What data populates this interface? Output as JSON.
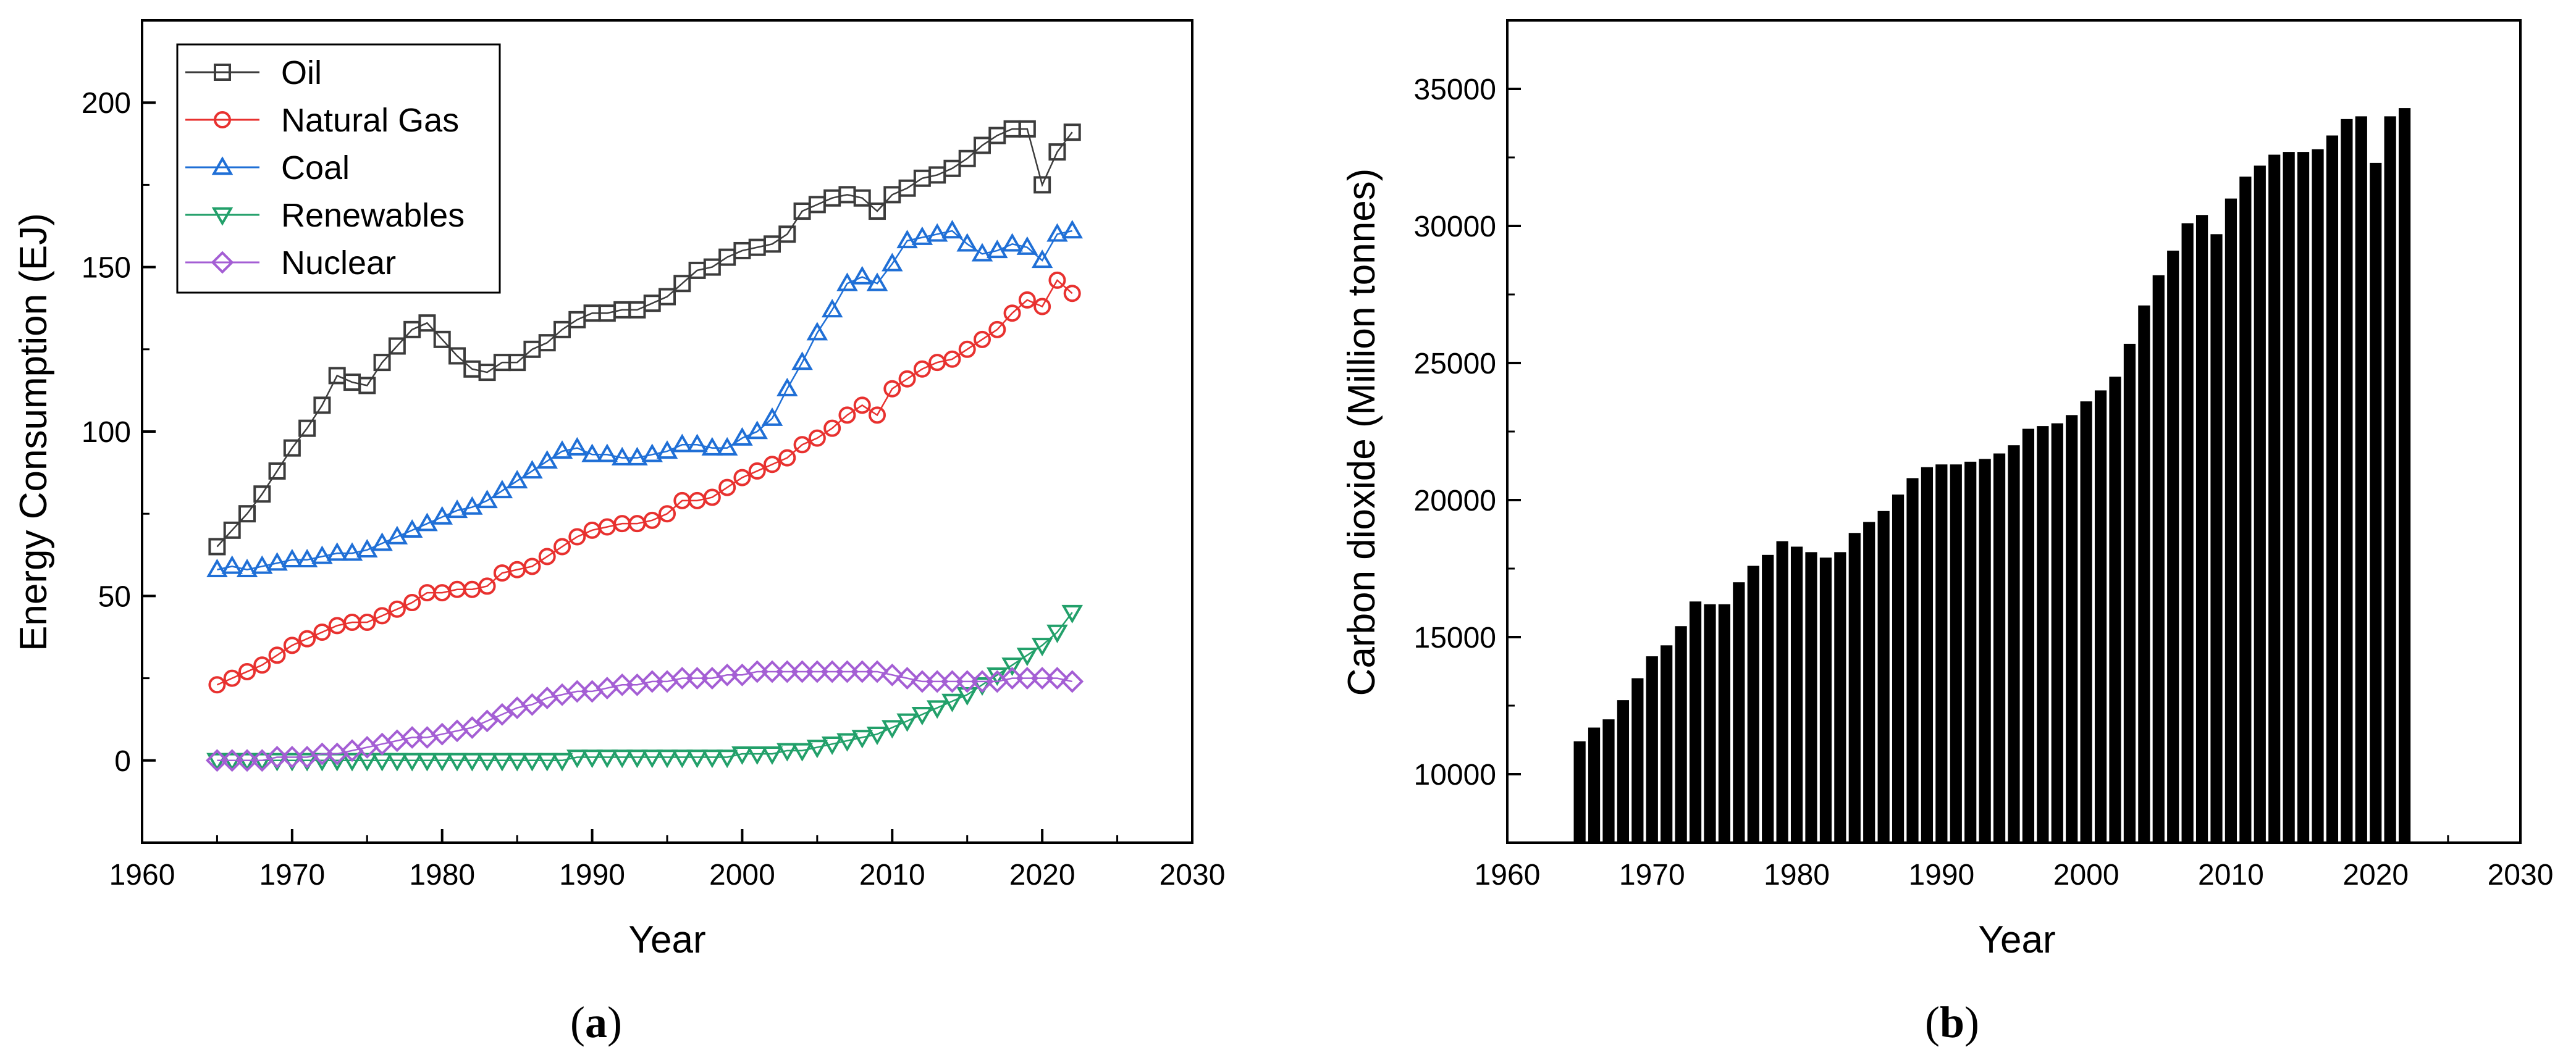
{
  "chart_data": [
    {
      "type": "line",
      "panel": "a",
      "caption_open": "(",
      "caption_letter": "a",
      "caption_close": ")",
      "xlabel": "Year",
      "ylabel": "Energy Consumption (EJ)",
      "xlim": [
        1960,
        2030
      ],
      "ylim": [
        -25,
        225
      ],
      "xticks": [
        1960,
        1970,
        1980,
        1990,
        2000,
        2010,
        2020,
        2030
      ],
      "yticks": [
        0,
        50,
        100,
        150,
        200
      ],
      "x_start": 1965,
      "legend_position": "top-left",
      "series": [
        {
          "name": "Oil",
          "color": "#3c3c3c",
          "marker": "square",
          "values": [
            65,
            70,
            75,
            81,
            88,
            95,
            101,
            108,
            117,
            115,
            114,
            121,
            126,
            131,
            133,
            128,
            123,
            119,
            118,
            121,
            121,
            125,
            127,
            131,
            134,
            136,
            136,
            137,
            137,
            139,
            141,
            145,
            149,
            150,
            153,
            155,
            156,
            157,
            160,
            167,
            169,
            171,
            172,
            171,
            167,
            172,
            174,
            177,
            178,
            180,
            183,
            187,
            190,
            192,
            192,
            175,
            185,
            191
          ]
        },
        {
          "name": "Natural Gas",
          "color": "#e8312f",
          "marker": "circle",
          "values": [
            23,
            25,
            27,
            29,
            32,
            35,
            37,
            39,
            41,
            42,
            42,
            44,
            46,
            48,
            51,
            51,
            52,
            52,
            53,
            57,
            58,
            59,
            62,
            65,
            68,
            70,
            71,
            72,
            72,
            73,
            75,
            79,
            79,
            80,
            83,
            86,
            88,
            90,
            92,
            96,
            98,
            101,
            105,
            108,
            105,
            113,
            116,
            119,
            121,
            122,
            125,
            128,
            131,
            136,
            140,
            138,
            146,
            142
          ]
        },
        {
          "name": "Coal",
          "color": "#1f6fd6",
          "marker": "triangle-up",
          "values": [
            58,
            59,
            58,
            59,
            60,
            61,
            61,
            62,
            63,
            63,
            64,
            66,
            68,
            70,
            72,
            74,
            76,
            77,
            79,
            82,
            85,
            88,
            91,
            94,
            95,
            93,
            93,
            92,
            92,
            93,
            94,
            96,
            96,
            95,
            95,
            98,
            100,
            104,
            113,
            121,
            130,
            137,
            145,
            147,
            145,
            151,
            158,
            159,
            160,
            161,
            157,
            154,
            155,
            157,
            156,
            152,
            160,
            161
          ]
        },
        {
          "name": "Renewables",
          "color": "#22a06a",
          "marker": "triangle-down",
          "values": [
            0,
            0,
            0,
            0,
            0,
            0,
            0,
            0,
            0,
            0,
            0,
            0,
            0,
            0,
            0,
            0,
            0,
            0,
            0,
            0,
            0,
            0,
            0,
            0,
            1,
            1,
            1,
            1,
            1,
            1,
            1,
            1,
            1,
            1,
            1,
            2,
            2,
            2,
            3,
            3,
            4,
            5,
            6,
            7,
            8,
            10,
            12,
            14,
            16,
            18,
            20,
            23,
            26,
            29,
            32,
            35,
            39,
            45
          ]
        },
        {
          "name": "Nuclear",
          "color": "#a45ed4",
          "marker": "diamond",
          "values": [
            0,
            0,
            0,
            0,
            1,
            1,
            1,
            2,
            2,
            3,
            4,
            5,
            6,
            7,
            7,
            8,
            9,
            10,
            12,
            14,
            16,
            17,
            19,
            20,
            21,
            21,
            22,
            23,
            23,
            24,
            24,
            25,
            25,
            25,
            26,
            26,
            27,
            27,
            27,
            27,
            27,
            27,
            27,
            27,
            27,
            26,
            25,
            24,
            24,
            24,
            24,
            24,
            24,
            25,
            25,
            25,
            25,
            24
          ]
        }
      ]
    },
    {
      "type": "bar",
      "panel": "b",
      "caption_open": "(",
      "caption_letter": "b",
      "caption_close": ")",
      "xlabel": "Year",
      "ylabel": "Carbon dioxide (Million tonnes)",
      "xlim": [
        1960,
        2030
      ],
      "ylim": [
        7500,
        37500
      ],
      "xticks": [
        1960,
        1970,
        1980,
        1990,
        2000,
        2010,
        2020,
        2030
      ],
      "yticks": [
        10000,
        15000,
        20000,
        25000,
        30000,
        35000
      ],
      "x_start": 1965,
      "color": "#000000",
      "values": [
        11200,
        11700,
        12000,
        12700,
        13500,
        14300,
        14700,
        15400,
        16300,
        16200,
        16200,
        17000,
        17600,
        18000,
        18500,
        18300,
        18100,
        17900,
        18100,
        18800,
        19200,
        19600,
        20200,
        20800,
        21200,
        21300,
        21300,
        21400,
        21500,
        21700,
        22000,
        22600,
        22700,
        22800,
        23100,
        23600,
        24000,
        24500,
        25700,
        27100,
        28200,
        29100,
        30100,
        30400,
        29700,
        31000,
        31800,
        32200,
        32600,
        32700,
        32700,
        32800,
        33300,
        33900,
        34000,
        32300,
        34000,
        34300
      ]
    }
  ]
}
